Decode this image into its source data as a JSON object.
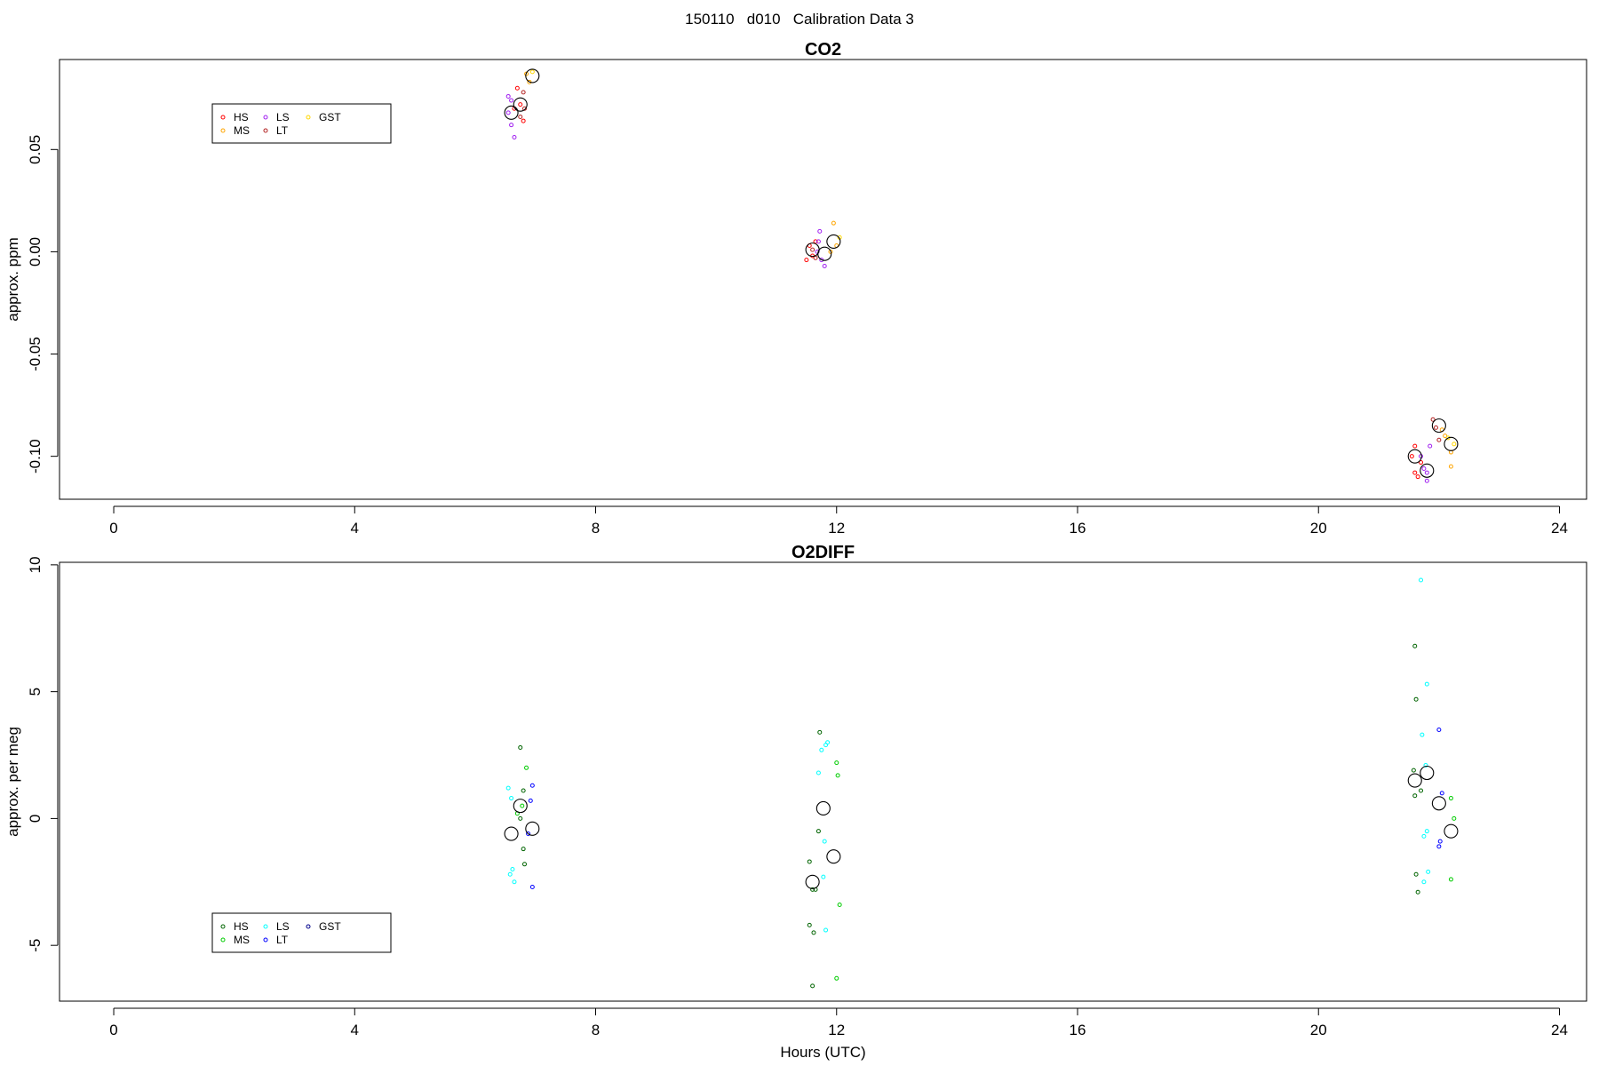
{
  "page_title": "150110   d010   Calibration Data 3",
  "chart_data": [
    {
      "type": "scatter",
      "title": "CO2",
      "xlabel": "",
      "ylabel": "approx. ppm",
      "xlim": [
        -0.9,
        24.45
      ],
      "ylim": [
        -0.121,
        0.094
      ],
      "xticks": [
        0,
        4,
        8,
        12,
        16,
        20,
        24
      ],
      "yticks": [
        -0.1,
        -0.05,
        0.0,
        0.05
      ],
      "ytick_labels": [
        "-0.10",
        "-0.05",
        "0.00",
        "0.05"
      ],
      "legend": {
        "position": "top-left",
        "entries": [
          {
            "label": "HS",
            "color": "#ff0000"
          },
          {
            "label": "MS",
            "color": "#ffa500"
          },
          {
            "label": "LS",
            "color": "#a020f0"
          },
          {
            "label": "LT",
            "color": "#b22222"
          },
          {
            "label": "GST",
            "color": "#ffd700"
          }
        ]
      },
      "series": [
        {
          "name": "HS",
          "color": "#ff0000",
          "points": [
            [
              6.7,
              0.08
            ],
            [
              6.75,
              0.072
            ],
            [
              6.8,
              0.064
            ],
            [
              6.65,
              0.07
            ],
            [
              11.55,
              0.003
            ],
            [
              11.6,
              -0.002
            ],
            [
              11.65,
              0.005
            ],
            [
              11.5,
              -0.004
            ],
            [
              21.6,
              -0.095
            ],
            [
              21.55,
              -0.1
            ],
            [
              21.7,
              -0.103
            ],
            [
              21.65,
              -0.11
            ],
            [
              21.6,
              -0.108
            ]
          ]
        },
        {
          "name": "MS",
          "color": "#ffa500",
          "points": [
            [
              6.85,
              0.087
            ],
            [
              6.9,
              0.083
            ],
            [
              11.95,
              0.014
            ],
            [
              12.0,
              0.003
            ],
            [
              11.9,
              0.0
            ],
            [
              22.2,
              -0.098
            ],
            [
              22.2,
              -0.105
            ],
            [
              22.05,
              -0.087
            ],
            [
              22.1,
              -0.09
            ]
          ]
        },
        {
          "name": "LS",
          "color": "#a020f0",
          "points": [
            [
              6.55,
              0.068
            ],
            [
              6.6,
              0.062
            ],
            [
              6.65,
              0.056
            ],
            [
              6.55,
              0.076
            ],
            [
              6.6,
              0.074
            ],
            [
              11.7,
              0.005
            ],
            [
              11.75,
              -0.004
            ],
            [
              11.8,
              -0.007
            ],
            [
              11.72,
              0.01
            ],
            [
              11.68,
              0.0
            ],
            [
              21.75,
              -0.106
            ],
            [
              21.8,
              -0.112
            ],
            [
              21.7,
              -0.1
            ],
            [
              21.85,
              -0.095
            ],
            [
              21.8,
              -0.108
            ]
          ]
        },
        {
          "name": "LT",
          "color": "#b22222",
          "points": [
            [
              6.75,
              0.066
            ],
            [
              6.8,
              0.078
            ],
            [
              6.82,
              0.07
            ],
            [
              11.6,
              0.001
            ],
            [
              11.65,
              -0.003
            ],
            [
              21.95,
              -0.086
            ],
            [
              22.0,
              -0.092
            ],
            [
              21.9,
              -0.082
            ]
          ]
        },
        {
          "name": "GST",
          "color": "#ffd700",
          "points": [
            [
              6.95,
              0.088
            ],
            [
              12.05,
              0.007
            ],
            [
              22.25,
              -0.094
            ],
            [
              22.15,
              -0.091
            ]
          ]
        },
        {
          "name": "mean",
          "color": "#000000",
          "large": true,
          "points": [
            [
              6.6,
              0.068
            ],
            [
              6.75,
              0.072
            ],
            [
              6.95,
              0.086
            ],
            [
              11.6,
              0.001
            ],
            [
              11.8,
              -0.001
            ],
            [
              11.95,
              0.005
            ],
            [
              21.6,
              -0.1
            ],
            [
              21.8,
              -0.107
            ],
            [
              22.0,
              -0.085
            ],
            [
              22.2,
              -0.094
            ]
          ]
        }
      ]
    },
    {
      "type": "scatter",
      "title": "O2DIFF",
      "xlabel": "Hours (UTC)",
      "ylabel": "approx. per meg",
      "xlim": [
        -0.9,
        24.45
      ],
      "ylim": [
        -7.2,
        10.1
      ],
      "xticks": [
        0,
        4,
        8,
        12,
        16,
        20,
        24
      ],
      "yticks": [
        -5,
        0,
        5,
        10
      ],
      "ytick_labels": [
        "-5",
        "0",
        "5",
        "10"
      ],
      "legend": {
        "position": "bottom-left",
        "entries": [
          {
            "label": "HS",
            "color": "#006400"
          },
          {
            "label": "MS",
            "color": "#00cc00"
          },
          {
            "label": "LS",
            "color": "#00ffff"
          },
          {
            "label": "LT",
            "color": "#0000ff"
          },
          {
            "label": "GST",
            "color": "#00008b"
          }
        ]
      },
      "series": [
        {
          "name": "HS",
          "color": "#006400",
          "points": [
            [
              6.75,
              2.8
            ],
            [
              6.8,
              1.1
            ],
            [
              6.75,
              0.0
            ],
            [
              6.8,
              -1.2
            ],
            [
              6.82,
              -1.8
            ],
            [
              11.55,
              -1.7
            ],
            [
              11.6,
              -2.8
            ],
            [
              11.65,
              -2.8
            ],
            [
              11.55,
              -4.2
            ],
            [
              11.62,
              -4.5
            ],
            [
              11.6,
              -6.6
            ],
            [
              11.72,
              3.4
            ],
            [
              11.7,
              -0.5
            ],
            [
              21.6,
              6.8
            ],
            [
              21.62,
              4.7
            ],
            [
              21.58,
              1.9
            ],
            [
              21.6,
              0.9
            ],
            [
              21.62,
              -2.2
            ],
            [
              21.65,
              -2.9
            ],
            [
              21.7,
              1.1
            ]
          ]
        },
        {
          "name": "MS",
          "color": "#00cc00",
          "points": [
            [
              6.85,
              2.0
            ],
            [
              6.78,
              0.5
            ],
            [
              6.7,
              0.2
            ],
            [
              12.0,
              2.2
            ],
            [
              12.02,
              1.7
            ],
            [
              12.05,
              -3.4
            ],
            [
              12.0,
              -6.3
            ],
            [
              22.2,
              0.8
            ],
            [
              22.25,
              0.0
            ],
            [
              22.2,
              -2.4
            ]
          ]
        },
        {
          "name": "LS",
          "color": "#00ffff",
          "points": [
            [
              6.55,
              1.2
            ],
            [
              6.6,
              0.8
            ],
            [
              6.62,
              -2.0
            ],
            [
              6.58,
              -2.2
            ],
            [
              6.65,
              -2.5
            ],
            [
              11.7,
              1.8
            ],
            [
              11.75,
              2.7
            ],
            [
              11.82,
              2.9
            ],
            [
              11.85,
              3.0
            ],
            [
              11.8,
              -0.9
            ],
            [
              11.78,
              -2.3
            ],
            [
              11.82,
              -4.4
            ],
            [
              21.7,
              9.4
            ],
            [
              21.8,
              5.3
            ],
            [
              21.72,
              3.3
            ],
            [
              21.78,
              2.1
            ],
            [
              21.75,
              -0.7
            ],
            [
              21.8,
              -0.5
            ],
            [
              21.82,
              -2.1
            ],
            [
              21.75,
              -2.5
            ]
          ]
        },
        {
          "name": "LT",
          "color": "#0000ff",
          "points": [
            [
              6.95,
              1.3
            ],
            [
              6.92,
              0.7
            ],
            [
              6.88,
              -0.6
            ],
            [
              6.95,
              -2.7
            ],
            [
              22.0,
              3.5
            ],
            [
              22.05,
              1.0
            ],
            [
              22.02,
              -0.9
            ],
            [
              22.0,
              -1.1
            ]
          ]
        },
        {
          "name": "mean",
          "color": "#000000",
          "large": true,
          "points": [
            [
              6.6,
              -0.6
            ],
            [
              6.75,
              0.5
            ],
            [
              6.95,
              -0.4
            ],
            [
              11.6,
              -2.5
            ],
            [
              11.78,
              0.4
            ],
            [
              11.95,
              -1.5
            ],
            [
              21.6,
              1.5
            ],
            [
              21.8,
              1.8
            ],
            [
              22.0,
              0.6
            ],
            [
              22.2,
              -0.5
            ]
          ]
        }
      ]
    }
  ]
}
